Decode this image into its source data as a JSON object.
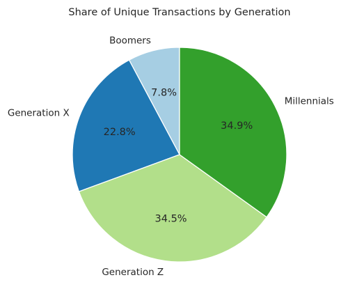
{
  "chart_data": {
    "type": "pie",
    "title": "Share of Unique Transactions by Generation",
    "categories": [
      "Boomers",
      "Generation X",
      "Generation Z",
      "Millennials"
    ],
    "values": [
      7.8,
      22.8,
      34.5,
      34.9
    ],
    "value_labels": [
      "7.8%",
      "22.8%",
      "34.5%",
      "34.9%"
    ],
    "colors": [
      "#a6cee3",
      "#1f78b4",
      "#b2df8a",
      "#33a02c"
    ],
    "start_angle_deg": 90,
    "direction": "counterclockwise",
    "legend": "none"
  }
}
